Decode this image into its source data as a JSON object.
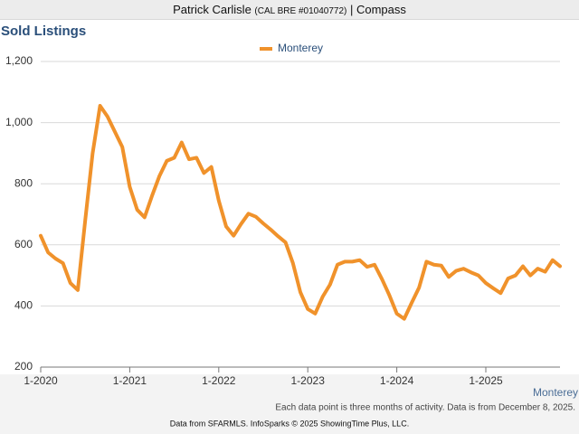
{
  "header": {
    "name": "Patrick Carlisle",
    "license": "(CAL BRE #01040772)",
    "company": "| Compass"
  },
  "chart_data": {
    "type": "line",
    "title": "Sold Listings",
    "categories": [
      "1-2020",
      null,
      null,
      null,
      null,
      null,
      null,
      null,
      null,
      null,
      null,
      null,
      "1-2021",
      null,
      null,
      null,
      null,
      null,
      null,
      null,
      null,
      null,
      null,
      null,
      "1-2022",
      null,
      null,
      null,
      null,
      null,
      null,
      null,
      null,
      null,
      null,
      null,
      "1-2023",
      null,
      null,
      null,
      null,
      null,
      null,
      null,
      null,
      null,
      null,
      null,
      "1-2024",
      null,
      null,
      null,
      null,
      null,
      null,
      null,
      null,
      null,
      null,
      null,
      "1-2025",
      null,
      null,
      null,
      null,
      null,
      null,
      null,
      null,
      null,
      null
    ],
    "series": [
      {
        "name": "Monterey",
        "color": "#f0922b",
        "values": [
          630,
          575,
          555,
          540,
          475,
          452,
          680,
          900,
          1055,
          1020,
          970,
          920,
          790,
          715,
          690,
          760,
          825,
          875,
          885,
          935,
          880,
          885,
          835,
          855,
          745,
          660,
          630,
          668,
          702,
          692,
          670,
          650,
          628,
          608,
          540,
          445,
          390,
          375,
          430,
          470,
          535,
          545,
          545,
          550,
          528,
          535,
          488,
          435,
          375,
          358,
          410,
          460,
          545,
          535,
          532,
          495,
          515,
          522,
          510,
          500,
          475,
          458,
          442,
          490,
          500,
          530,
          500,
          522,
          512,
          550,
          530
        ]
      }
    ],
    "ylim": [
      200,
      1200
    ],
    "yticks": [
      200,
      400,
      600,
      800,
      {
        "value": 1000,
        "label": "1,000"
      },
      {
        "value": 1200,
        "label": "1,200"
      }
    ],
    "grid": true,
    "x_label": "Monterey",
    "note": "Each data point is three months of activity. Data is from December 8, 2025.",
    "source": "Data from SFARMLS. InfoSparks © 2025 ShowingTime Plus, LLC."
  }
}
